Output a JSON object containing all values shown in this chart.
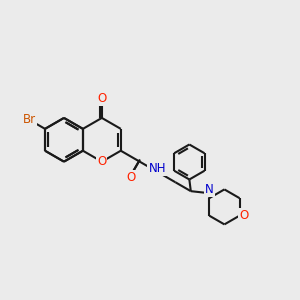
{
  "bg_color": "#ebebeb",
  "bond_color": "#1a1a1a",
  "bond_lw": 1.5,
  "atom_colors": {
    "Br": "#cc5500",
    "O": "#ff2200",
    "N": "#0000cc",
    "H_gray": "#555555"
  },
  "font_size": 8.5,
  "font_size_br": 8.5,
  "fig_size": [
    3.0,
    3.0
  ],
  "dpi": 100
}
